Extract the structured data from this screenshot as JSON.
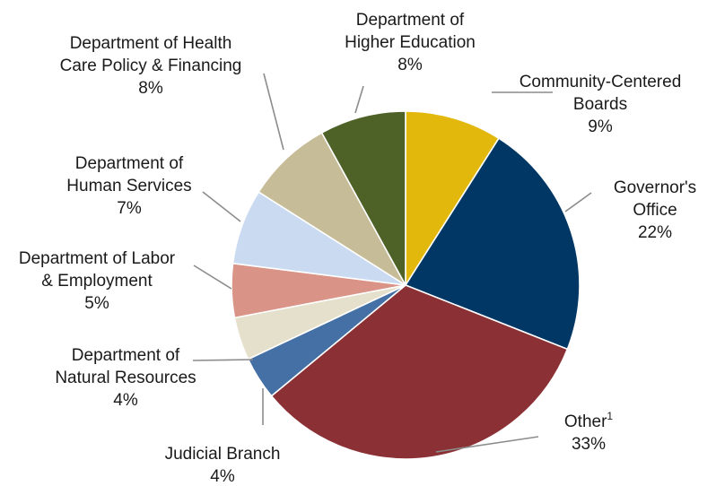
{
  "chart_data": {
    "type": "pie",
    "title": "",
    "slices": [
      {
        "name_lines": [
          "Community-Centered",
          "Boards"
        ],
        "label": "9%",
        "value": 9,
        "color": "#E3B80D"
      },
      {
        "name_lines": [
          "Governor's",
          "Office"
        ],
        "label": "22%",
        "value": 22,
        "color": "#003764"
      },
      {
        "name_lines": [
          "Other"
        ],
        "superscript": "1",
        "label": "33%",
        "value": 33,
        "color": "#8B3034"
      },
      {
        "name_lines": [
          "Judicial Branch"
        ],
        "label": "4%",
        "value": 4,
        "color": "#4470A5"
      },
      {
        "name_lines": [
          "Department of",
          "Natural Resources"
        ],
        "label": "4%",
        "value": 4,
        "color": "#E5E0CC"
      },
      {
        "name_lines": [
          "Department of Labor",
          "& Employment"
        ],
        "label": "5%",
        "value": 5,
        "color": "#D99487"
      },
      {
        "name_lines": [
          "Department of",
          "Human Services"
        ],
        "label": "7%",
        "value": 7,
        "color": "#C9DAF1"
      },
      {
        "name_lines": [
          "Department of Health",
          "Care Policy & Financing"
        ],
        "label": "8%",
        "value": 8,
        "color": "#C6BC98"
      },
      {
        "name_lines": [
          "Department of",
          "Higher Education"
        ],
        "label": "8%",
        "value": 8,
        "color": "#4E6228"
      }
    ]
  }
}
